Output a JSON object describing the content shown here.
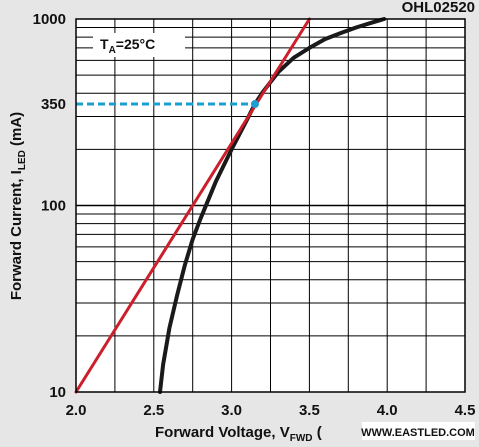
{
  "chart_data": {
    "type": "line",
    "code": "OHL02520",
    "condition": "T_A = 25°C",
    "condition_parts": {
      "main": "T",
      "sub": "A",
      "rest": "=25°C"
    },
    "xlabel": "Forward Voltage, V_FWD (V)",
    "xlabel_parts": {
      "main": "Forward Voltage, V",
      "sub": "FWD",
      "rest": " ("
    },
    "ylabel": "Forward Current, I_LED (mA)",
    "ylabel_parts": {
      "main": "Forward Current, I",
      "sub": "LED",
      "rest": " (mA)"
    },
    "xlim": [
      2.0,
      4.5
    ],
    "ylim": [
      10,
      1000
    ],
    "yscale": "log",
    "x_ticks": [
      "2.0",
      "2.5",
      "3.0",
      "3.5",
      "4.0",
      "4.5"
    ],
    "y_ticks": [
      "10",
      "100",
      "350",
      "1000"
    ],
    "grid": true,
    "series": [
      {
        "color": "#1a1a1a",
        "x": [
          2.54,
          2.56,
          2.6,
          2.65,
          2.7,
          2.75,
          2.8,
          2.9,
          3.0,
          3.1,
          3.15,
          3.2,
          3.3,
          3.4,
          3.5,
          3.6,
          3.7,
          3.8,
          3.9,
          3.98
        ],
        "y": [
          10,
          14,
          22,
          33,
          48,
          66,
          85,
          135,
          200,
          290,
          350,
          405,
          520,
          620,
          700,
          780,
          840,
          900,
          955,
          1000
        ]
      },
      {
        "color": "#cc1f2b",
        "x": [
          2.0,
          3.5
        ],
        "y": [
          10,
          1000
        ]
      }
    ],
    "marker": {
      "x": 3.15,
      "y": 350,
      "color": "#1a9fd0"
    },
    "watermark": "WWW.EASTLED.COM"
  }
}
